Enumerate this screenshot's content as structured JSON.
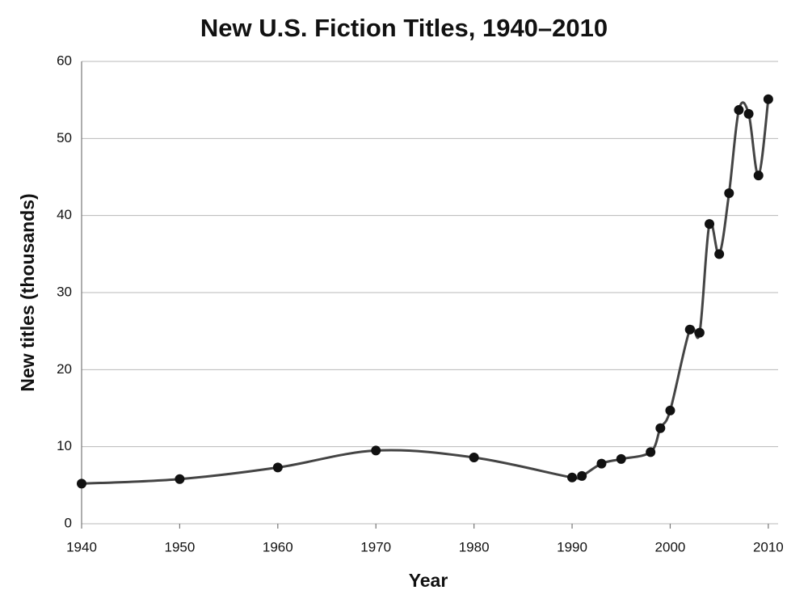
{
  "chart_data": {
    "type": "line",
    "title": "New U.S. Fiction Titles, 1940–2010",
    "x_label": "Year",
    "y_label": "New titles (thousands)",
    "x": [
      1940,
      1950,
      1960,
      1970,
      1980,
      1990,
      1991,
      1993,
      1995,
      1998,
      1999,
      2000,
      2002,
      2003,
      2004,
      2005,
      2006,
      2007,
      2008,
      2009,
      2010
    ],
    "series": [
      {
        "name": "New titles",
        "color": "#444444",
        "values": [
          5.2,
          5.8,
          7.3,
          9.5,
          8.6,
          6.0,
          6.2,
          7.8,
          8.4,
          9.3,
          12.4,
          14.7,
          25.2,
          24.8,
          38.9,
          35.0,
          42.9,
          53.7,
          53.2,
          45.2,
          55.1
        ]
      }
    ],
    "xlim": [
      1940,
      2011
    ],
    "ylim": [
      0,
      60
    ],
    "xticks": [
      1940,
      1950,
      1960,
      1970,
      1980,
      1990,
      2000,
      2010
    ],
    "yticks": [
      0,
      10,
      20,
      30,
      40,
      50,
      60
    ],
    "grid": true,
    "smooth": true,
    "marker_color": "#111111"
  }
}
